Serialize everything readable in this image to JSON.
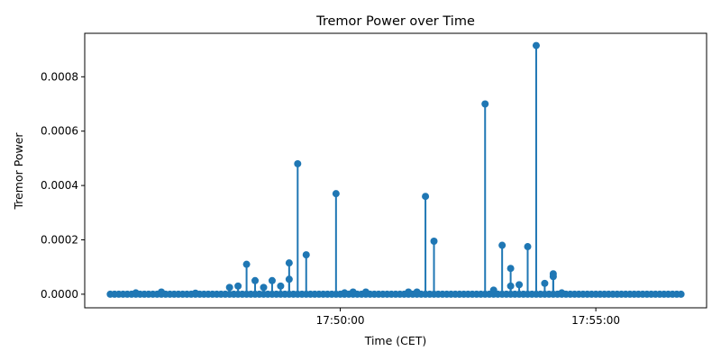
{
  "chart_data": {
    "type": "stem",
    "title": "Tremor Power over Time",
    "xlabel": "Time (CET)",
    "ylabel": "Tremor Power",
    "xlim": [
      "17:45:00",
      "17:57:10"
    ],
    "ylim": [
      -5e-05,
      0.00096
    ],
    "x_ticks": [
      "17:50:00",
      "17:55:00"
    ],
    "y_ticks": [
      "0.0000",
      "0.0002",
      "0.0004",
      "0.0006",
      "0.0008"
    ],
    "y_tick_values": [
      0,
      0.0002,
      0.0004,
      0.0006,
      0.0008
    ],
    "grid": false,
    "color": "#1f77b4",
    "baseline": {
      "start": "17:45:30",
      "end": "17:56:40",
      "interval_seconds": 5,
      "value": 0.0
    },
    "points": [
      {
        "x": "17:46:00",
        "y": 5e-06
      },
      {
        "x": "17:46:30",
        "y": 8e-06
      },
      {
        "x": "17:47:10",
        "y": 4e-06
      },
      {
        "x": "17:47:50",
        "y": 2.5e-05
      },
      {
        "x": "17:48:00",
        "y": 3e-05
      },
      {
        "x": "17:48:10",
        "y": 0.00011
      },
      {
        "x": "17:48:20",
        "y": 5e-05
      },
      {
        "x": "17:48:30",
        "y": 2.5e-05
      },
      {
        "x": "17:48:40",
        "y": 5e-05
      },
      {
        "x": "17:48:50",
        "y": 3e-05
      },
      {
        "x": "17:49:00",
        "y": 0.000115
      },
      {
        "x": "17:49:00",
        "y": 5.5e-05
      },
      {
        "x": "17:49:10",
        "y": 0.00048
      },
      {
        "x": "17:49:20",
        "y": 0.000145
      },
      {
        "x": "17:49:55",
        "y": 0.00037
      },
      {
        "x": "17:50:05",
        "y": 5e-06
      },
      {
        "x": "17:50:15",
        "y": 8e-06
      },
      {
        "x": "17:50:30",
        "y": 8e-06
      },
      {
        "x": "17:51:20",
        "y": 8e-06
      },
      {
        "x": "17:51:30",
        "y": 8e-06
      },
      {
        "x": "17:51:40",
        "y": 0.00036
      },
      {
        "x": "17:51:50",
        "y": 0.000195
      },
      {
        "x": "17:52:50",
        "y": 0.0007
      },
      {
        "x": "17:53:00",
        "y": 1.5e-05
      },
      {
        "x": "17:53:10",
        "y": 0.00018
      },
      {
        "x": "17:53:20",
        "y": 9.5e-05
      },
      {
        "x": "17:53:20",
        "y": 3e-05
      },
      {
        "x": "17:53:30",
        "y": 3.5e-05
      },
      {
        "x": "17:53:40",
        "y": 0.000175
      },
      {
        "x": "17:53:50",
        "y": 0.000915
      },
      {
        "x": "17:54:00",
        "y": 4e-05
      },
      {
        "x": "17:54:10",
        "y": 7.5e-05
      },
      {
        "x": "17:54:10",
        "y": 6.5e-05
      },
      {
        "x": "17:54:20",
        "y": 5e-06
      }
    ]
  }
}
